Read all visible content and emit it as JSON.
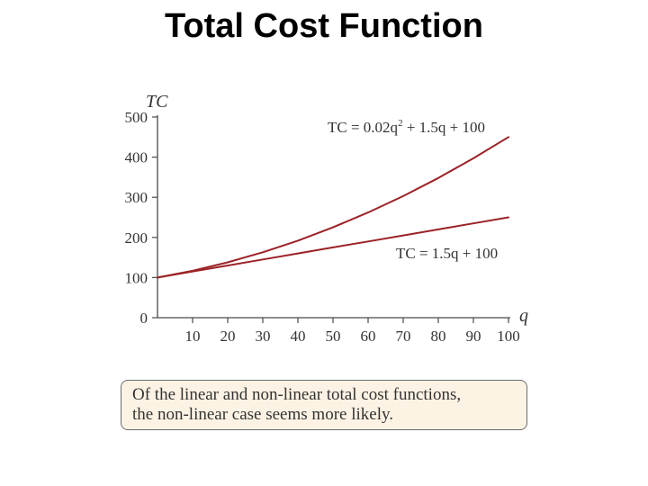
{
  "title": "Total Cost Function",
  "note": {
    "line1": "Of the linear and non-linear total cost functions,",
    "line2": "the non-linear case seems more likely."
  },
  "colors": {
    "curve": "#9b2226",
    "axis": "#4a4a4a",
    "note_background": "#fdf3e4",
    "note_border": "#6b6b6b"
  },
  "chart_data": {
    "type": "line",
    "xlabel": "q",
    "ylabel": "TC",
    "xlim": [
      0,
      100
    ],
    "ylim": [
      0,
      500
    ],
    "x_ticks": [
      10,
      20,
      30,
      40,
      50,
      60,
      70,
      80,
      90,
      100
    ],
    "y_ticks": [
      0,
      100,
      200,
      300,
      400,
      500
    ],
    "grid": false,
    "legend": "none",
    "series": [
      {
        "label_parts": [
          "TC = 0.02q",
          "2",
          " + 1.5q + 100"
        ],
        "x": [
          0,
          10,
          20,
          30,
          40,
          50,
          60,
          70,
          80,
          90,
          100
        ],
        "y": [
          100,
          117,
          138,
          163,
          192,
          225,
          262,
          303,
          348,
          397,
          450
        ]
      },
      {
        "label_parts": [
          "TC = 1.5q + 100"
        ],
        "x": [
          0,
          10,
          20,
          30,
          40,
          50,
          60,
          70,
          80,
          90,
          100
        ],
        "y": [
          100,
          115,
          130,
          145,
          160,
          175,
          190,
          205,
          220,
          235,
          250
        ]
      }
    ]
  }
}
